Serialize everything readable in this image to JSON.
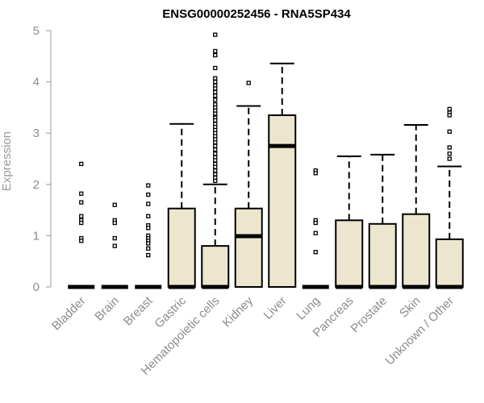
{
  "chart_data": {
    "type": "box",
    "title": "ENSG00000252456 - RNA5SP434",
    "xlabel": "",
    "ylabel": "Expression",
    "ylim": [
      0,
      5
    ],
    "yticks": [
      0,
      1,
      2,
      3,
      4,
      5
    ],
    "categories": [
      "Bladder",
      "Brain",
      "Breast",
      "Gastric",
      "Hematopoietic cells",
      "Kidney",
      "Liver",
      "Lung",
      "Pancreas",
      "Prostate",
      "Skin",
      "Unknown / Other"
    ],
    "boxes": [
      {
        "category": "Bladder",
        "q1": 0,
        "median": 0,
        "q3": 0,
        "whisker_low": 0,
        "whisker_high": 0,
        "outliers": [
          2.4,
          1.82,
          1.65,
          1.38,
          1.3,
          1.25,
          0.95,
          0.9
        ]
      },
      {
        "category": "Brain",
        "q1": 0,
        "median": 0,
        "q3": 0,
        "whisker_low": 0,
        "whisker_high": 0,
        "outliers": [
          1.6,
          1.3,
          1.25,
          0.95,
          0.8
        ]
      },
      {
        "category": "Breast",
        "q1": 0,
        "median": 0,
        "q3": 0,
        "whisker_low": 0,
        "whisker_high": 0,
        "outliers": [
          1.98,
          1.8,
          1.62,
          1.38,
          1.2,
          1.15,
          1.0,
          0.95,
          0.9,
          0.85,
          0.75,
          0.62
        ]
      },
      {
        "category": "Gastric",
        "q1": 0,
        "median": 0,
        "q3": 1.53,
        "whisker_low": 0,
        "whisker_high": 3.18,
        "outliers": []
      },
      {
        "category": "Hematopoietic cells",
        "q1": 0,
        "median": 0,
        "q3": 0.8,
        "whisker_low": 0,
        "whisker_high": 2.0,
        "outliers": [
          4.92,
          4.6,
          4.52,
          4.27,
          4.07,
          4.0,
          3.93,
          3.87,
          3.8,
          3.73,
          3.65,
          3.56,
          3.5,
          3.44,
          3.38,
          3.3,
          3.25,
          3.18,
          3.12,
          3.06,
          3.0,
          2.94,
          2.88,
          2.82,
          2.75,
          2.68,
          2.6,
          2.53,
          2.47,
          2.4,
          2.34,
          2.27,
          2.2,
          2.13,
          2.07
        ]
      },
      {
        "category": "Kidney",
        "q1": 0,
        "median": 0.99,
        "q3": 1.53,
        "whisker_low": 0,
        "whisker_high": 3.53,
        "outliers": [
          3.98
        ]
      },
      {
        "category": "Liver",
        "q1": 0,
        "median": 2.75,
        "q3": 3.35,
        "whisker_low": 0,
        "whisker_high": 4.36,
        "outliers": []
      },
      {
        "category": "Lung",
        "q1": 0,
        "median": 0,
        "q3": 0,
        "whisker_low": 0,
        "whisker_high": 0,
        "outliers": [
          2.27,
          2.22,
          1.3,
          1.25,
          1.05,
          0.68
        ]
      },
      {
        "category": "Pancreas",
        "q1": 0,
        "median": 0,
        "q3": 1.3,
        "whisker_low": 0,
        "whisker_high": 2.55,
        "outliers": []
      },
      {
        "category": "Prostate",
        "q1": 0,
        "median": 0,
        "q3": 1.23,
        "whisker_low": 0,
        "whisker_high": 2.58,
        "outliers": []
      },
      {
        "category": "Skin",
        "q1": 0,
        "median": 0,
        "q3": 1.42,
        "whisker_low": 0,
        "whisker_high": 3.16,
        "outliers": []
      },
      {
        "category": "Unknown / Other",
        "q1": 0,
        "median": 0,
        "q3": 0.93,
        "whisker_low": 0,
        "whisker_high": 2.35,
        "outliers": [
          3.47,
          3.4,
          3.35,
          3.03,
          2.72,
          2.6,
          2.5
        ]
      }
    ],
    "box_fill": "#ede6cf",
    "line_color": "#000000",
    "axis_color": "#9a9a9a",
    "grid": false,
    "legend": "none"
  }
}
